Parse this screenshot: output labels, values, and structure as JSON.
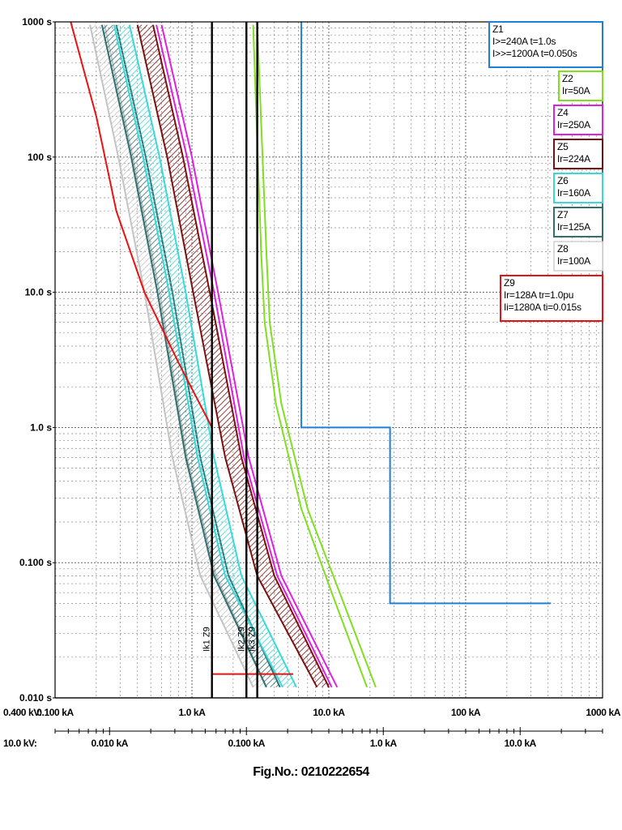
{
  "figure": {
    "number": "Fig.No.: 0210222654"
  },
  "chart_data": {
    "type": "line",
    "x_scale": "log",
    "y_scale": "log",
    "xlim": [
      0.1,
      1000
    ],
    "ylim": [
      0.01,
      1000
    ],
    "grid": true,
    "legend_placement": "right",
    "x_axis_primary": {
      "voltage_label": "0.400 kV:",
      "ticks": [
        {
          "value": 0.1,
          "label": "0.100 kA"
        },
        {
          "value": 1,
          "label": "1.0 kA"
        },
        {
          "value": 10,
          "label": "10.0 kA"
        },
        {
          "value": 100,
          "label": "100 kA"
        },
        {
          "value": 1000,
          "label": "1000 kA"
        }
      ]
    },
    "x_axis_secondary": {
      "voltage_label": "10.0 kV:",
      "ticks": [
        {
          "value": 0.01,
          "label": "0.010 kA"
        },
        {
          "value": 0.1,
          "label": "0.100 kA"
        },
        {
          "value": 1,
          "label": "1.0 kA"
        },
        {
          "value": 10,
          "label": "10.0 kA"
        }
      ]
    },
    "y_axis": {
      "ticks": [
        {
          "value": 1000,
          "label": "1000 s"
        },
        {
          "value": 100,
          "label": "100 s"
        },
        {
          "value": 10,
          "label": "10.0 s"
        },
        {
          "value": 1,
          "label": "1.0 s"
        },
        {
          "value": 0.1,
          "label": "0.100 s"
        },
        {
          "value": 0.01,
          "label": "0.010 s"
        }
      ]
    },
    "series": [
      {
        "name": "Z1",
        "color": "#1f7fd8",
        "kind": "definite_time",
        "points": [
          [
            6.3,
            1000
          ],
          [
            6.3,
            1.0
          ],
          [
            28,
            1.0
          ],
          [
            28,
            0.05
          ],
          [
            420,
            0.05
          ]
        ]
      },
      {
        "name": "Z2",
        "color": "#7ee01e",
        "kind": "band",
        "upper": [
          [
            3.0,
            950
          ],
          [
            3.5,
            20
          ],
          [
            3.7,
            6
          ],
          [
            4.5,
            1.5
          ],
          [
            7,
            0.25
          ],
          [
            12,
            0.06
          ],
          [
            22,
            0.012
          ]
        ],
        "lower": [
          [
            2.8,
            950
          ],
          [
            3.2,
            20
          ],
          [
            3.4,
            6
          ],
          [
            4.1,
            1.5
          ],
          [
            6.3,
            0.25
          ],
          [
            10.5,
            0.06
          ],
          [
            19,
            0.012
          ]
        ]
      },
      {
        "name": "Z4",
        "color": "#e020e0",
        "kind": "band",
        "upper": [
          [
            0.6,
            950
          ],
          [
            1.0,
            100
          ],
          [
            1.55,
            10
          ],
          [
            2.6,
            0.6
          ],
          [
            4.5,
            0.08
          ],
          [
            11.5,
            0.012
          ]
        ],
        "lower": [
          [
            0.55,
            950
          ],
          [
            0.92,
            100
          ],
          [
            1.45,
            10
          ],
          [
            2.4,
            0.6
          ],
          [
            4.2,
            0.08
          ],
          [
            10.5,
            0.012
          ]
        ]
      },
      {
        "name": "Z5",
        "color": "#7a1010",
        "kind": "band",
        "hatched": true,
        "upper": [
          [
            0.52,
            950
          ],
          [
            0.86,
            100
          ],
          [
            1.35,
            10
          ],
          [
            2.3,
            0.6
          ],
          [
            4.0,
            0.08
          ],
          [
            10,
            0.012
          ]
        ],
        "lower": [
          [
            0.4,
            950
          ],
          [
            0.66,
            100
          ],
          [
            1.02,
            10
          ],
          [
            1.75,
            0.6
          ],
          [
            3.0,
            0.08
          ],
          [
            8.2,
            0.012
          ]
        ]
      },
      {
        "name": "Z6",
        "color": "#3ad8d8",
        "kind": "band",
        "hatched": true,
        "upper": [
          [
            0.35,
            950
          ],
          [
            0.58,
            100
          ],
          [
            0.9,
            10
          ],
          [
            1.45,
            0.6
          ],
          [
            2.3,
            0.08
          ],
          [
            5.8,
            0.012
          ]
        ],
        "lower": [
          [
            0.27,
            950
          ],
          [
            0.44,
            100
          ],
          [
            0.68,
            10
          ],
          [
            1.1,
            0.6
          ],
          [
            1.75,
            0.08
          ],
          [
            4.6,
            0.012
          ]
        ]
      },
      {
        "name": "Z7",
        "color": "#2f7070",
        "kind": "band",
        "hatched": true,
        "upper": [
          [
            0.28,
            950
          ],
          [
            0.46,
            100
          ],
          [
            0.72,
            10
          ],
          [
            1.15,
            0.6
          ],
          [
            1.85,
            0.08
          ],
          [
            4.4,
            0.012
          ]
        ],
        "lower": [
          [
            0.22,
            950
          ],
          [
            0.36,
            100
          ],
          [
            0.56,
            10
          ],
          [
            0.9,
            0.6
          ],
          [
            1.45,
            0.08
          ],
          [
            3.5,
            0.012
          ]
        ]
      },
      {
        "name": "Z8",
        "color": "#c4c4c4",
        "kind": "band",
        "hatched": true,
        "upper": [
          [
            0.23,
            950
          ],
          [
            0.37,
            100
          ],
          [
            0.58,
            10
          ],
          [
            0.92,
            0.6
          ],
          [
            1.5,
            0.08
          ],
          [
            3.5,
            0.012
          ]
        ],
        "lower": [
          [
            0.18,
            950
          ],
          [
            0.29,
            100
          ],
          [
            0.45,
            10
          ],
          [
            0.72,
            0.6
          ],
          [
            1.15,
            0.08
          ],
          [
            2.8,
            0.012
          ]
        ]
      },
      {
        "name": "Z9",
        "color": "#ee1010",
        "kind": "curve",
        "points": [
          [
            0.13,
            1000
          ],
          [
            0.2,
            200
          ],
          [
            0.28,
            40
          ],
          [
            0.45,
            10
          ],
          [
            0.8,
            3
          ],
          [
            1.4,
            1.0
          ],
          [
            1.4,
            0.015
          ],
          [
            5.5,
            0.015
          ]
        ]
      }
    ],
    "reference_lines": [
      {
        "name": "Ik1 Z9",
        "value": 1.4
      },
      {
        "name": "Ik2 Z9",
        "value": 2.5
      },
      {
        "name": "Ik3 Z9",
        "value": 3.0
      }
    ],
    "legend": [
      {
        "series": "Z1",
        "lines": [
          "Z1",
          "I>=240A t=1.0s",
          "I>>=1200A t=0.050s"
        ],
        "color": "#1f7fd8"
      },
      {
        "series": "Z2",
        "lines": [
          "Z2",
          "Ir=50A"
        ],
        "color": "#7ee01e"
      },
      {
        "series": "Z4",
        "lines": [
          "Z4",
          "Ir=250A"
        ],
        "color": "#e020e0"
      },
      {
        "series": "Z5",
        "lines": [
          "Z5",
          "Ir=224A"
        ],
        "color": "#7a1010"
      },
      {
        "series": "Z6",
        "lines": [
          "Z6",
          "Ir=160A"
        ],
        "color": "#3ad8d8"
      },
      {
        "series": "Z7",
        "lines": [
          "Z7",
          "Ir=125A"
        ],
        "color": "#2f7070"
      },
      {
        "series": "Z8",
        "lines": [
          "Z8",
          "Ir=100A"
        ],
        "color": "#c4c4c4"
      },
      {
        "series": "Z9",
        "lines": [
          "Z9",
          "Ir=128A tr=1.0pu",
          "Ii=1280A ti=0.015s"
        ],
        "color": "#ee1010"
      }
    ]
  }
}
